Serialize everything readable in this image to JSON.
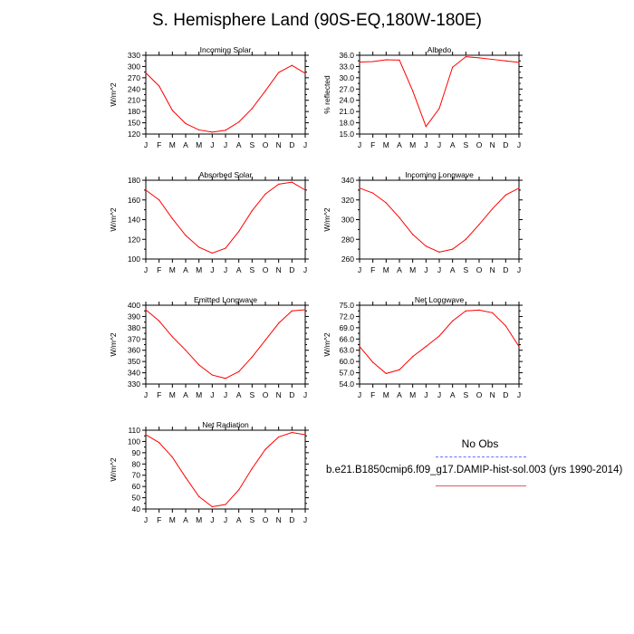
{
  "figure": {
    "title": "S. Hemisphere Land (90S-EQ,180W-180E)",
    "legend": {
      "obs_label": "No Obs",
      "model_label": "b.e21.B1850cmip6.f09_g17.DAMIP-hist-sol.003 (yrs 1990-2014)"
    },
    "line_color": "#ff0000",
    "obs_color": "#6b6bff"
  },
  "chart_data": [
    {
      "type": "line",
      "title": "Incoming Solar",
      "ylabel": "W/m^2",
      "categories": [
        "J",
        "F",
        "M",
        "A",
        "M",
        "J",
        "J",
        "A",
        "S",
        "O",
        "N",
        "D",
        "J"
      ],
      "ylim": [
        120,
        330
      ],
      "yticks": [
        "120",
        "135",
        "150",
        "165",
        "180",
        "195",
        "210",
        "225",
        "240",
        "255",
        "270",
        "285",
        "300",
        "315",
        "330"
      ],
      "ylabels": [
        "120",
        "150",
        "180",
        "210",
        "240",
        "270",
        "300",
        "330"
      ],
      "values": [
        283,
        248,
        183,
        148,
        131,
        125,
        130,
        152,
        188,
        235,
        284,
        303,
        282
      ]
    },
    {
      "type": "line",
      "title": "Albedo",
      "ylabel": "% reflected",
      "categories": [
        "J",
        "F",
        "M",
        "A",
        "M",
        "J",
        "J",
        "A",
        "S",
        "O",
        "N",
        "D",
        "J"
      ],
      "ylim": [
        15,
        36
      ],
      "yticks": [
        "15.0",
        "16.5",
        "18.0",
        "19.5",
        "21.0",
        "22.5",
        "24.0",
        "25.5",
        "27.0",
        "28.5",
        "30.0",
        "31.5",
        "33.0",
        "34.5",
        "36.0"
      ],
      "ylabels": [
        "15.0",
        "18.0",
        "21.0",
        "24.0",
        "27.0",
        "30.0",
        "33.0",
        "36.0"
      ],
      "values": [
        34.2,
        34.3,
        34.8,
        34.7,
        26.5,
        17.0,
        21.8,
        32.8,
        35.6,
        35.3,
        34.9,
        34.5,
        34.1
      ]
    },
    {
      "type": "line",
      "title": "Absorbed Solar",
      "ylabel": "W/m^2",
      "categories": [
        "J",
        "F",
        "M",
        "A",
        "M",
        "J",
        "J",
        "A",
        "S",
        "O",
        "N",
        "D",
        "J"
      ],
      "ylim": [
        100,
        180
      ],
      "yticks": [
        "100",
        "110",
        "120",
        "130",
        "140",
        "150",
        "160",
        "170",
        "180"
      ],
      "ylabels": [
        "100",
        "120",
        "140",
        "160",
        "180"
      ],
      "values": [
        170,
        160,
        141,
        124,
        112,
        106,
        111,
        128,
        149,
        166,
        176,
        178,
        170
      ]
    },
    {
      "type": "line",
      "title": "Incoming Longwave",
      "ylabel": "W/m^2",
      "categories": [
        "J",
        "F",
        "M",
        "A",
        "M",
        "J",
        "J",
        "A",
        "S",
        "O",
        "N",
        "D",
        "J"
      ],
      "ylim": [
        260,
        340
      ],
      "yticks": [
        "260",
        "270",
        "280",
        "290",
        "300",
        "310",
        "320",
        "330",
        "340"
      ],
      "ylabels": [
        "260",
        "280",
        "300",
        "320",
        "340"
      ],
      "values": [
        332,
        327,
        317,
        302,
        285,
        273,
        267,
        270,
        280,
        295,
        311,
        325,
        332
      ]
    },
    {
      "type": "line",
      "title": "Emitted Longwave",
      "ylabel": "W/m^2",
      "categories": [
        "J",
        "F",
        "M",
        "A",
        "M",
        "J",
        "J",
        "A",
        "S",
        "O",
        "N",
        "D",
        "J"
      ],
      "ylim": [
        330,
        400
      ],
      "yticks": [
        "330",
        "335",
        "340",
        "345",
        "350",
        "355",
        "360",
        "365",
        "370",
        "375",
        "380",
        "385",
        "390",
        "395",
        "400"
      ],
      "ylabels": [
        "330",
        "340",
        "350",
        "360",
        "370",
        "380",
        "390",
        "400"
      ],
      "values": [
        396,
        386,
        372,
        360,
        347,
        338,
        335,
        341,
        354,
        369,
        384,
        395,
        396
      ]
    },
    {
      "type": "line",
      "title": "Net Longwave",
      "ylabel": "W/m^2",
      "categories": [
        "J",
        "F",
        "M",
        "A",
        "M",
        "J",
        "J",
        "A",
        "S",
        "O",
        "N",
        "D",
        "J"
      ],
      "ylim": [
        54,
        75
      ],
      "yticks": [
        "54.0",
        "55.5",
        "57.0",
        "58.5",
        "60.0",
        "61.5",
        "63.0",
        "64.5",
        "66.0",
        "67.5",
        "69.0",
        "70.5",
        "72.0",
        "73.5",
        "75.0"
      ],
      "ylabels": [
        "54.0",
        "57.0",
        "60.0",
        "63.0",
        "66.0",
        "69.0",
        "72.0",
        "75.0"
      ],
      "values": [
        64.0,
        59.8,
        56.8,
        57.8,
        61.3,
        64.0,
        66.8,
        70.8,
        73.5,
        73.7,
        73.0,
        69.5,
        64.0
      ]
    },
    {
      "type": "line",
      "title": "Net Radiation",
      "ylabel": "W/m^2",
      "categories": [
        "J",
        "F",
        "M",
        "A",
        "M",
        "J",
        "J",
        "A",
        "S",
        "O",
        "N",
        "D",
        "J"
      ],
      "ylim": [
        40,
        110
      ],
      "yticks": [
        "40",
        "45",
        "50",
        "55",
        "60",
        "65",
        "70",
        "75",
        "80",
        "85",
        "90",
        "95",
        "100",
        "105",
        "110"
      ],
      "ylabels": [
        "40",
        "50",
        "60",
        "70",
        "80",
        "90",
        "100",
        "110"
      ],
      "values": [
        106,
        99,
        86,
        68,
        51,
        42,
        44,
        57,
        76,
        93,
        104,
        108,
        106
      ]
    }
  ]
}
